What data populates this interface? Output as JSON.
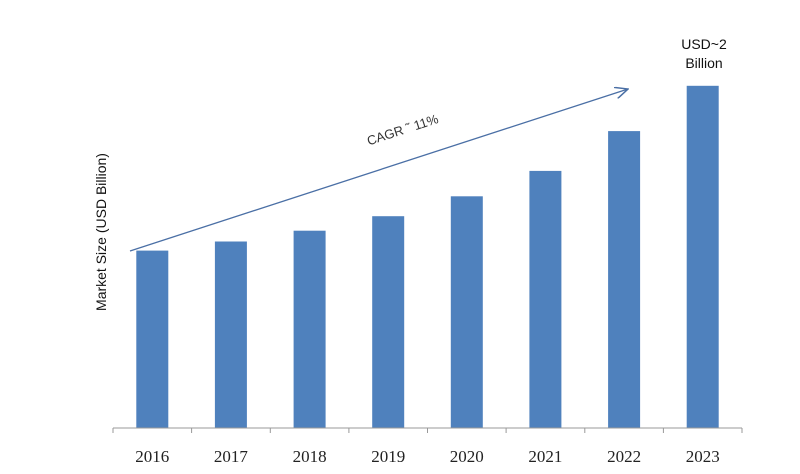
{
  "chart_data": {
    "type": "bar",
    "title": "",
    "xlabel": "",
    "ylabel": "Market Size (USD Billion)",
    "categories": [
      "2016",
      "2017",
      "2018",
      "2019",
      "2020",
      "2021",
      "2022",
      "2023"
    ],
    "values": [
      0.98,
      1.03,
      1.09,
      1.17,
      1.28,
      1.42,
      1.64,
      1.89
    ],
    "ylim": [
      0,
      1.9
    ],
    "grid": false,
    "legend": "none",
    "bar_color": "#4f81bd",
    "annotations": {
      "cagr": "CAGR ˜ 11%",
      "last_value_line1": "USD~2",
      "last_value_line2": "Billion"
    }
  }
}
